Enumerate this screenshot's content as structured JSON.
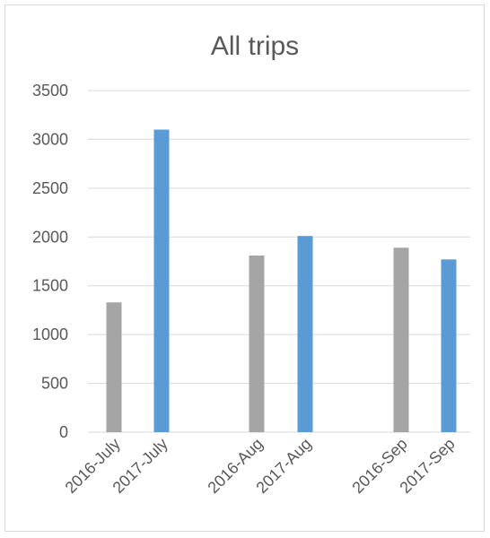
{
  "chart_data": {
    "type": "bar",
    "title": "All trips",
    "xlabel": "",
    "ylabel": "",
    "ylim": [
      0,
      3500
    ],
    "yticks": [
      0,
      500,
      1000,
      1500,
      2000,
      2500,
      3000,
      3500
    ],
    "grid": true,
    "legend": "none",
    "categories": [
      "2016-July",
      "2017-July",
      "2016-Aug",
      "2017-Aug",
      "2016-Sep",
      "2017-Sep"
    ],
    "values": [
      1330,
      3100,
      1810,
      2010,
      1890,
      1770
    ],
    "colors": {
      "2016": "#a5a5a5",
      "2017": "#5b9bd5",
      "grid": "#d9d9d9",
      "text": "#595959"
    }
  }
}
